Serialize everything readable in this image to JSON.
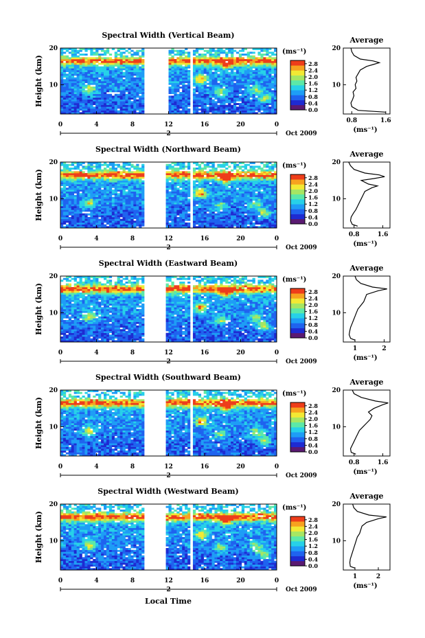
{
  "figure": {
    "x_axis_title": "Local Time",
    "date_label": "Oct 2009",
    "day_label": "2",
    "colorbar_unit": "(ms⁻¹)",
    "profile_title": "Average",
    "profile_unit": "(ms⁻¹)",
    "height_label": "Height (km)",
    "colors": {
      "colormap": [
        "#5a1a72",
        "#1e2bd2",
        "#1f63ef",
        "#1e9df6",
        "#27d1e8",
        "#5ce8a8",
        "#a6e663",
        "#f2e934",
        "#f7a21f",
        "#ee3d1a"
      ],
      "data_gap": "#ffffff",
      "axis": "#000000"
    }
  },
  "chart_data": [
    {
      "type": "heatmap",
      "title": "Spectral Width (Vertical Beam)",
      "xlabel": "Local Time",
      "ylabel": "Height (km)",
      "x_ticks": [
        "0",
        "4",
        "8",
        "12",
        "16",
        "20",
        "0"
      ],
      "y_ticks": [
        "10",
        "20"
      ],
      "xlim_hours": [
        0,
        24
      ],
      "ylim_km": [
        2,
        20
      ],
      "data_gaps_hours": [
        [
          9.2,
          12
        ],
        [
          14.5,
          14.8
        ]
      ],
      "colorbar": {
        "label": "(ms⁻¹)",
        "ticks": [
          "0.0",
          "0.4",
          "0.8",
          "1.2",
          "1.6",
          "2.0",
          "2.4",
          "2.8"
        ],
        "range": [
          0,
          3.0
        ]
      },
      "average_profile": {
        "title": "Average",
        "xlabel": "(ms⁻¹)",
        "x_ticks": [
          "0.8",
          "1.6"
        ],
        "xlim": [
          0.6,
          1.7
        ],
        "y_ticks": [
          "10",
          "20"
        ],
        "height_km": [
          2.5,
          3,
          4,
          5,
          6,
          7,
          8,
          9,
          10,
          11,
          12,
          13,
          14,
          15,
          15.5,
          16,
          16.5,
          17,
          18,
          19,
          20
        ],
        "width_ms": [
          1.6,
          0.95,
          0.8,
          0.78,
          0.82,
          0.85,
          0.83,
          0.9,
          0.88,
          0.92,
          0.9,
          0.95,
          1.0,
          1.15,
          1.3,
          1.45,
          1.3,
          1.0,
          0.85,
          0.8,
          0.78
        ]
      }
    },
    {
      "type": "heatmap",
      "title": "Spectral Width (Northward Beam)",
      "xlabel": "Local Time",
      "ylabel": "Height (km)",
      "x_ticks": [
        "0",
        "4",
        "8",
        "12",
        "16",
        "20",
        "0"
      ],
      "y_ticks": [
        "10",
        "20"
      ],
      "xlim_hours": [
        0,
        24
      ],
      "ylim_km": [
        2,
        20
      ],
      "data_gaps_hours": [
        [
          9.2,
          11.8
        ],
        [
          14.5,
          14.8
        ]
      ],
      "colorbar": {
        "label": "(ms⁻¹)",
        "ticks": [
          "0.0",
          "0.4",
          "0.8",
          "1.2",
          "1.6",
          "2.0",
          "2.4",
          "2.8"
        ],
        "range": [
          0,
          3.0
        ]
      },
      "average_profile": {
        "title": "Average",
        "xlabel": "(ms⁻¹)",
        "x_ticks": [
          "0.8",
          "1.6"
        ],
        "xlim": [
          0.5,
          1.8
        ],
        "y_ticks": [
          "10",
          "20"
        ],
        "height_km": [
          2.5,
          3,
          4,
          5,
          6,
          7,
          8,
          9,
          10,
          11,
          12,
          13,
          13.5,
          14,
          15,
          15.5,
          16,
          16.5,
          17,
          18,
          19,
          20
        ],
        "width_ms": [
          0.9,
          0.75,
          0.7,
          0.72,
          0.78,
          0.85,
          0.9,
          0.95,
          1.0,
          1.05,
          1.1,
          1.3,
          1.45,
          1.2,
          1.0,
          1.35,
          1.65,
          1.5,
          1.1,
          0.8,
          0.7,
          0.65
        ]
      }
    },
    {
      "type": "heatmap",
      "title": "Spectral Width (Eastward Beam)",
      "xlabel": "Local Time",
      "ylabel": "Height (km)",
      "x_ticks": [
        "0",
        "4",
        "8",
        "12",
        "16",
        "20",
        "0"
      ],
      "y_ticks": [
        "10",
        "20"
      ],
      "xlim_hours": [
        0,
        24
      ],
      "ylim_km": [
        2,
        20
      ],
      "data_gaps_hours": [
        [
          9.2,
          11.8
        ],
        [
          14.5,
          14.8
        ]
      ],
      "colorbar": {
        "label": "(ms⁻¹)",
        "ticks": [
          "0.0",
          "0.4",
          "0.8",
          "1.2",
          "1.6",
          "2.0",
          "2.4",
          "2.8"
        ],
        "range": [
          0,
          3.0
        ]
      },
      "average_profile": {
        "title": "Average",
        "xlabel": "(ms⁻¹)",
        "x_ticks": [
          "1",
          "2"
        ],
        "xlim": [
          0.6,
          2.2
        ],
        "y_ticks": [
          "10",
          "20"
        ],
        "height_km": [
          2.5,
          3,
          4,
          5,
          6,
          7,
          8,
          9,
          10,
          11,
          12,
          13,
          14,
          15,
          16,
          16.5,
          17,
          18,
          19,
          20
        ],
        "width_ms": [
          1.0,
          0.85,
          0.8,
          0.82,
          0.85,
          0.9,
          0.95,
          1.0,
          1.05,
          1.1,
          1.2,
          1.3,
          1.35,
          1.4,
          1.8,
          2.1,
          1.6,
          1.2,
          1.05,
          1.0
        ]
      }
    },
    {
      "type": "heatmap",
      "title": "Spectral Width (Southward Beam)",
      "xlabel": "Local Time",
      "ylabel": "Height (km)",
      "x_ticks": [
        "0",
        "4",
        "8",
        "12",
        "16",
        "20",
        "0"
      ],
      "y_ticks": [
        "10",
        "20"
      ],
      "xlim_hours": [
        0,
        24
      ],
      "ylim_km": [
        2,
        20
      ],
      "data_gaps_hours": [
        [
          9.2,
          11.8
        ],
        [
          14.5,
          14.8
        ]
      ],
      "colorbar": {
        "label": "(ms⁻¹)",
        "ticks": [
          "0.0",
          "0.4",
          "0.8",
          "1.2",
          "1.6",
          "2.0",
          "2.4",
          "2.8"
        ],
        "range": [
          0,
          3.0
        ]
      },
      "average_profile": {
        "title": "Average",
        "xlabel": "(ms⁻¹)",
        "x_ticks": [
          "0.8",
          "1.6"
        ],
        "xlim": [
          0.5,
          1.8
        ],
        "y_ticks": [
          "10",
          "20"
        ],
        "height_km": [
          2.5,
          3,
          4,
          5,
          6,
          7,
          8,
          9,
          10,
          11,
          12,
          13,
          14,
          15,
          16,
          16.5,
          17,
          18,
          19,
          20
        ],
        "width_ms": [
          0.85,
          0.72,
          0.7,
          0.75,
          0.8,
          0.85,
          0.9,
          0.95,
          1.05,
          1.15,
          1.25,
          1.3,
          1.2,
          1.35,
          1.6,
          1.75,
          1.4,
          1.0,
          0.8,
          0.75
        ]
      }
    },
    {
      "type": "heatmap",
      "title": "Spectral Width (Westward Beam)",
      "xlabel": "Local Time",
      "ylabel": "Height (km)",
      "x_ticks": [
        "0",
        "4",
        "8",
        "12",
        "16",
        "20",
        "0"
      ],
      "y_ticks": [
        "10",
        "20"
      ],
      "xlim_hours": [
        0,
        24
      ],
      "ylim_km": [
        2,
        20
      ],
      "data_gaps_hours": [
        [
          9.2,
          11.8
        ],
        [
          14.5,
          14.8
        ]
      ],
      "colorbar": {
        "label": "(ms⁻¹)",
        "ticks": [
          "0.0",
          "0.4",
          "0.8",
          "1.2",
          "1.6",
          "2.0",
          "2.4",
          "2.8"
        ],
        "range": [
          0,
          3.0
        ]
      },
      "average_profile": {
        "title": "Average",
        "xlabel": "(ms⁻¹)",
        "x_ticks": [
          "1",
          "2"
        ],
        "xlim": [
          0.5,
          2.5
        ],
        "y_ticks": [
          "10",
          "20"
        ],
        "height_km": [
          2.5,
          3,
          4,
          5,
          6,
          7,
          8,
          9,
          10,
          11,
          12,
          13,
          14,
          15,
          16,
          16.5,
          17,
          18,
          19,
          20
        ],
        "width_ms": [
          1.0,
          0.8,
          0.78,
          0.8,
          0.85,
          0.9,
          0.95,
          1.0,
          1.05,
          1.1,
          1.2,
          1.25,
          1.3,
          1.5,
          2.0,
          2.35,
          1.6,
          1.1,
          0.95,
          0.9
        ]
      }
    }
  ]
}
